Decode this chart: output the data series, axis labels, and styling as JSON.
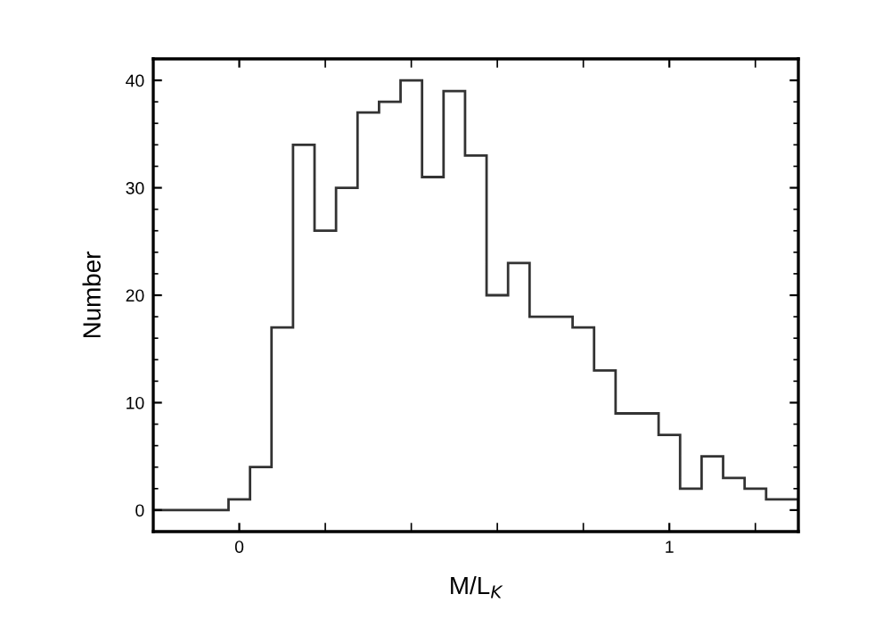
{
  "chart_data": {
    "type": "histogram",
    "xlabel": "M/L$_{K}$",
    "ylabel": "Number",
    "bins": [
      -0.2,
      -0.025,
      0.025,
      0.075,
      0.125,
      0.175,
      0.225,
      0.275,
      0.325,
      0.375,
      0.425,
      0.475,
      0.525,
      0.575,
      0.625,
      0.675,
      0.725,
      0.775,
      0.825,
      0.875,
      0.925,
      0.975,
      1.025,
      1.075,
      1.125,
      1.175,
      1.225,
      1.275,
      1.3
    ],
    "values": [
      0,
      1,
      4,
      17,
      34,
      26,
      30,
      37,
      38,
      40,
      31,
      39,
      33,
      20,
      23,
      18,
      18,
      17,
      13,
      9,
      9,
      7,
      2,
      5,
      3,
      2,
      1,
      1
    ],
    "color": "#333333",
    "xlim": [
      -0.2,
      1.3
    ],
    "xticks": [
      {
        "value": 0,
        "label": "0"
      },
      {
        "value": 0.2,
        "label": null
      },
      {
        "value": 0.4,
        "label": null
      },
      {
        "value": 0.6,
        "label": null
      },
      {
        "value": 0.8,
        "label": null
      },
      1,
      {
        "value": 1.2,
        "label": null
      }
    ],
    "ylim": [
      -2,
      42
    ],
    "yticks": [
      0,
      {
        "value": 2,
        "label": null
      },
      {
        "value": 4,
        "label": null
      },
      {
        "value": 6,
        "label": null
      },
      {
        "value": 8,
        "label": null
      },
      10,
      {
        "value": 12,
        "label": null
      },
      {
        "value": 14,
        "label": null
      },
      {
        "value": 16,
        "label": null
      },
      {
        "value": 18,
        "label": null
      },
      20,
      {
        "value": 22,
        "label": null
      },
      {
        "value": 24,
        "label": null
      },
      {
        "value": 26,
        "label": null
      },
      {
        "value": 28,
        "label": null
      },
      30,
      {
        "value": 32,
        "label": null
      },
      {
        "value": 34,
        "label": null
      },
      {
        "value": 36,
        "label": null
      },
      {
        "value": 38,
        "label": null
      },
      40
    ],
    "grid": false
  }
}
